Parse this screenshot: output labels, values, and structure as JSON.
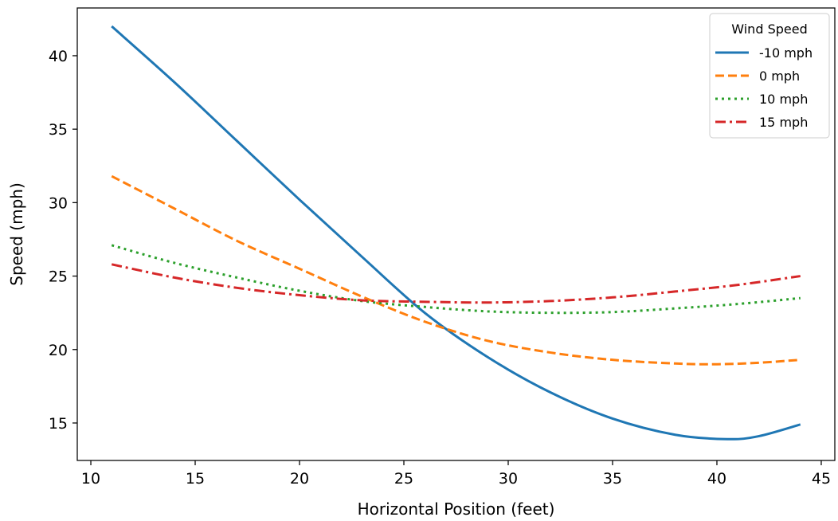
{
  "chart_data": {
    "type": "line",
    "title": "",
    "xlabel": "Horizontal Position (feet)",
    "ylabel": "Speed (mph)",
    "xlim": [
      9.35,
      45.65
    ],
    "ylim": [
      12.45,
      43.25
    ],
    "xticks": [
      10,
      15,
      20,
      25,
      30,
      35,
      40,
      45
    ],
    "yticks": [
      15,
      20,
      25,
      30,
      35,
      40
    ],
    "grid": false,
    "legend": {
      "title": "Wind Speed",
      "placement": "top-right"
    },
    "series": [
      {
        "name": "-10 mph",
        "color": "#1f77b4",
        "dash": "solid",
        "x": [
          11,
          14,
          17,
          20,
          23,
          26,
          29,
          32,
          35,
          38,
          40.5,
          42,
          44
        ],
        "y": [
          42.0,
          38.2,
          34.2,
          30.2,
          26.3,
          22.5,
          19.5,
          17.1,
          15.3,
          14.2,
          13.9,
          14.1,
          14.9
        ]
      },
      {
        "name": "0 mph",
        "color": "#ff7f0e",
        "dash": "dashed",
        "x": [
          11,
          14,
          17,
          20,
          23,
          26,
          29,
          32,
          35,
          38,
          40,
          42,
          44
        ],
        "y": [
          31.8,
          29.6,
          27.4,
          25.5,
          23.6,
          21.9,
          20.6,
          19.8,
          19.3,
          19.05,
          19.0,
          19.1,
          19.3
        ]
      },
      {
        "name": "10 mph",
        "color": "#2ca02c",
        "dash": "dotted",
        "x": [
          11,
          14,
          17,
          20,
          23,
          26,
          29,
          32,
          35,
          38,
          41,
          44
        ],
        "y": [
          27.1,
          25.9,
          24.9,
          24.0,
          23.3,
          22.9,
          22.6,
          22.5,
          22.55,
          22.8,
          23.1,
          23.5
        ]
      },
      {
        "name": "15 mph",
        "color": "#d62728",
        "dash": "dashdot",
        "x": [
          11,
          14,
          17,
          20,
          23,
          26,
          29,
          32,
          35,
          38,
          41,
          44
        ],
        "y": [
          25.8,
          24.9,
          24.2,
          23.7,
          23.35,
          23.25,
          23.2,
          23.3,
          23.55,
          23.95,
          24.4,
          25.0
        ]
      }
    ]
  }
}
